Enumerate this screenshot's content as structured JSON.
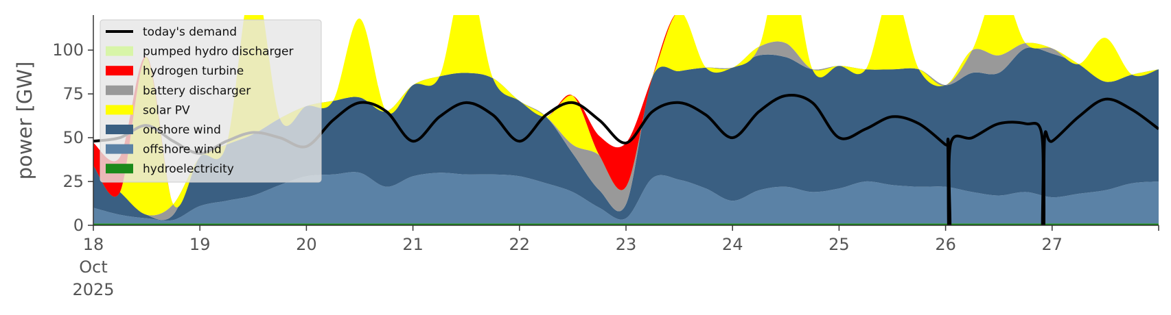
{
  "chart_data": {
    "type": "area",
    "ylabel": "power [GW]",
    "ylim": [
      0,
      120
    ],
    "xlim": [
      "2025-10-18T00:00",
      "2025-10-28T00:00"
    ],
    "yticks": [
      0,
      25,
      50,
      75,
      100
    ],
    "xticks": [
      {
        "x": "2025-10-18T00:00",
        "lines": [
          "18",
          "Oct",
          "2025"
        ]
      },
      {
        "x": "2025-10-19T00:00",
        "lines": [
          "19"
        ]
      },
      {
        "x": "2025-10-20T00:00",
        "lines": [
          "20"
        ]
      },
      {
        "x": "2025-10-21T00:00",
        "lines": [
          "21"
        ]
      },
      {
        "x": "2025-10-22T00:00",
        "lines": [
          "22"
        ]
      },
      {
        "x": "2025-10-23T00:00",
        "lines": [
          "23"
        ]
      },
      {
        "x": "2025-10-24T00:00",
        "lines": [
          "24"
        ]
      },
      {
        "x": "2025-10-25T00:00",
        "lines": [
          "25"
        ]
      },
      {
        "x": "2025-10-26T00:00",
        "lines": [
          "26"
        ]
      },
      {
        "x": "2025-10-27T00:00",
        "lines": [
          "27"
        ]
      }
    ],
    "grid": false,
    "legend_position": "upper-left",
    "x": [
      "2025-10-18T00:00",
      "2025-10-18T06:00",
      "2025-10-18T12:00",
      "2025-10-18T18:00",
      "2025-10-19T00:00",
      "2025-10-19T06:00",
      "2025-10-19T12:00",
      "2025-10-19T18:00",
      "2025-10-20T00:00",
      "2025-10-20T06:00",
      "2025-10-20T12:00",
      "2025-10-20T18:00",
      "2025-10-21T00:00",
      "2025-10-21T06:00",
      "2025-10-21T12:00",
      "2025-10-21T18:00",
      "2025-10-22T00:00",
      "2025-10-22T06:00",
      "2025-10-22T12:00",
      "2025-10-22T18:00",
      "2025-10-23T00:00",
      "2025-10-23T06:00",
      "2025-10-23T12:00",
      "2025-10-23T18:00",
      "2025-10-24T00:00",
      "2025-10-24T06:00",
      "2025-10-24T12:00",
      "2025-10-24T18:00",
      "2025-10-25T00:00",
      "2025-10-25T06:00",
      "2025-10-25T12:00",
      "2025-10-25T18:00",
      "2025-10-26T00:00",
      "2025-10-26T06:00",
      "2025-10-26T12:00",
      "2025-10-26T18:00",
      "2025-10-27T00:00",
      "2025-10-27T06:00",
      "2025-10-27T12:00",
      "2025-10-27T18:00",
      "2025-10-28T00:00"
    ],
    "series": [
      {
        "name": "hydroelectricity",
        "color": "#1a8a1a",
        "values": [
          1,
          1,
          1,
          1,
          1,
          1,
          1,
          1,
          1,
          1,
          1,
          1,
          1,
          1,
          1,
          1,
          1,
          1,
          1,
          1,
          1,
          1,
          1,
          1,
          1,
          1,
          1,
          1,
          1,
          1,
          1,
          1,
          1,
          1,
          1,
          1,
          1,
          1,
          1,
          1,
          1
        ]
      },
      {
        "name": "offshore wind",
        "color": "#5b82a6",
        "values": [
          9,
          5,
          3,
          2,
          10,
          13,
          16,
          22,
          27,
          28,
          29,
          21,
          27,
          29,
          28,
          28,
          27,
          23,
          18,
          9,
          3,
          26,
          25,
          20,
          13,
          19,
          21,
          18,
          20,
          24,
          22,
          21,
          21,
          18,
          16,
          18,
          15,
          17,
          19,
          23,
          24
        ]
      },
      {
        "name": "onshore wind",
        "color": "#3a5f82",
        "values": [
          24,
          13,
          2,
          3,
          28,
          32,
          35,
          38,
          40,
          42,
          43,
          43,
          52,
          55,
          58,
          55,
          43,
          38,
          22,
          10,
          8,
          58,
          62,
          69,
          76,
          77,
          74,
          70,
          70,
          64,
          66,
          67,
          58,
          68,
          70,
          82,
          82,
          74,
          62,
          62,
          64
        ]
      },
      {
        "name": "battery discharger",
        "color": "#999999",
        "values": [
          0,
          0,
          0,
          6,
          0,
          0,
          0,
          0,
          0,
          0,
          0,
          0,
          0,
          0,
          0,
          0,
          0,
          0,
          5,
          20,
          10,
          0,
          0,
          0,
          0,
          5,
          8,
          0,
          0,
          0,
          0,
          0,
          0,
          13,
          10,
          3,
          3,
          0,
          0,
          0,
          0
        ]
      },
      {
        "name": "solar PV",
        "color": "#ffff00",
        "values": [
          0,
          0,
          90,
          0,
          0,
          0,
          90,
          0,
          0,
          0,
          45,
          0,
          0,
          0,
          57,
          0,
          0,
          0,
          28,
          0,
          0,
          0,
          34,
          0,
          0,
          0,
          55,
          0,
          0,
          0,
          45,
          0,
          0,
          0,
          40,
          0,
          0,
          0,
          25,
          0,
          0
        ]
      },
      {
        "name": "hydrogen turbine",
        "color": "#ff0000",
        "values": [
          13,
          20,
          0,
          0,
          0,
          0,
          0,
          0,
          0,
          0,
          0,
          0,
          0,
          0,
          0,
          0,
          0,
          0,
          0,
          11,
          25,
          0,
          0,
          0,
          0,
          0,
          0,
          0,
          0,
          0,
          0,
          0,
          0,
          0,
          0,
          0,
          0,
          0,
          0,
          0,
          0
        ]
      },
      {
        "name": "pumped hydro discharger",
        "color": "#d8f5a8",
        "values": [
          0,
          0,
          0,
          0,
          0,
          0,
          0,
          0,
          0,
          0,
          0,
          0,
          0,
          0,
          0,
          0,
          0,
          0,
          0,
          0,
          0,
          0,
          0,
          0,
          0,
          0,
          0,
          0,
          0,
          0,
          0,
          0,
          0,
          0,
          0,
          0,
          0,
          0,
          0,
          0,
          0
        ]
      }
    ],
    "demand": {
      "name": "today's demand",
      "color": "#000000",
      "values": [
        48,
        50,
        57,
        48,
        41,
        48,
        53,
        50,
        45,
        60,
        70,
        65,
        48,
        62,
        70,
        63,
        48,
        63,
        70,
        60,
        47,
        65,
        70,
        63,
        50,
        65,
        74,
        70,
        50,
        55,
        62,
        58,
        46,
        50,
        58,
        58,
        48,
        62,
        72,
        66,
        55
      ]
    },
    "demand_dropouts": [
      {
        "x": "2025-10-26T00:50",
        "value": 0
      },
      {
        "x": "2025-10-26T22:00",
        "value": 0
      }
    ],
    "legend": [
      {
        "label": "today's demand",
        "kind": "line",
        "color": "#000000"
      },
      {
        "label": "pumped hydro discharger",
        "kind": "patch",
        "color": "#d8f5a8"
      },
      {
        "label": "hydrogen turbine",
        "kind": "patch",
        "color": "#ff0000"
      },
      {
        "label": "battery discharger",
        "kind": "patch",
        "color": "#999999"
      },
      {
        "label": "solar PV",
        "kind": "patch",
        "color": "#ffff00"
      },
      {
        "label": "onshore wind",
        "kind": "patch",
        "color": "#3a5f82"
      },
      {
        "label": "offshore wind",
        "kind": "patch",
        "color": "#5b82a6"
      },
      {
        "label": "hydroelectricity",
        "kind": "patch",
        "color": "#1a8a1a"
      }
    ]
  }
}
